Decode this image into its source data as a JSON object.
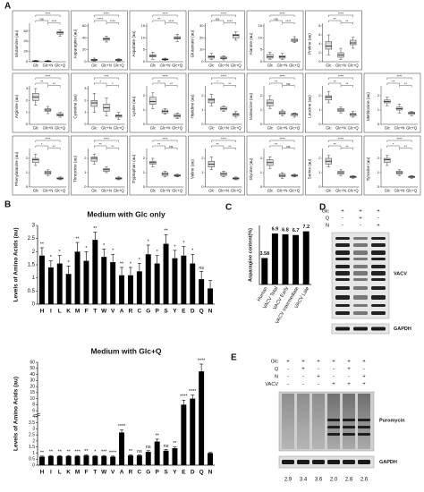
{
  "panel_labels": [
    "A",
    "B",
    "C",
    "D",
    "E"
  ],
  "chart_data": [
    {
      "type": "box",
      "y_label": "Glutamine (au)",
      "categories": [
        "Glc",
        "Glc+N",
        "Glc+Q"
      ],
      "ylim": [
        0,
        70
      ],
      "yticks": [
        0,
        20,
        40,
        60
      ],
      "boxes": [
        [
          0,
          0.5,
          1,
          2,
          3
        ],
        [
          0,
          0.5,
          1,
          1.5,
          3
        ],
        [
          50,
          54,
          57,
          59,
          62
        ]
      ],
      "annotations": [
        "ns",
        "****",
        "****"
      ]
    },
    {
      "type": "box",
      "y_label": "Asparagine (au)",
      "categories": [
        "Glc",
        "Glc+N",
        "Glc+Q"
      ],
      "ylim": [
        0,
        60
      ],
      "yticks": [
        0,
        20,
        40,
        60
      ],
      "boxes": [
        [
          1,
          2,
          3,
          4,
          6
        ],
        [
          33,
          36,
          38,
          40,
          43
        ],
        [
          1,
          2,
          3,
          4,
          5
        ]
      ],
      "annotations": [
        "****",
        "****",
        "****"
      ]
    },
    {
      "type": "box",
      "y_label": "Aspartate (au)",
      "categories": [
        "Glc",
        "Glc+N",
        "Glc+Q"
      ],
      "ylim": [
        0,
        15
      ],
      "yticks": [
        0,
        5,
        10,
        15
      ],
      "boxes": [
        [
          1,
          2,
          2.5,
          3,
          4
        ],
        [
          0.5,
          0.8,
          1,
          1.2,
          1.5
        ],
        [
          8.5,
          9.5,
          10,
          10.5,
          11.5
        ]
      ],
      "annotations": [
        "**",
        "****",
        "****"
      ]
    },
    {
      "type": "box",
      "y_label": "Glutamate (au)",
      "categories": [
        "Glc",
        "Glc+N",
        "Glc+Q"
      ],
      "ylim": [
        0,
        30
      ],
      "yticks": [
        0,
        10,
        20,
        30
      ],
      "boxes": [
        [
          2,
          3,
          4,
          5,
          7
        ],
        [
          1.5,
          2.5,
          3,
          4,
          5
        ],
        [
          18,
          20,
          22,
          23,
          25
        ]
      ],
      "annotations": [
        "ns",
        "****",
        "****"
      ]
    },
    {
      "type": "box",
      "y_label": "Alanine (au)",
      "categories": [
        "Glc",
        "Glc+N",
        "Glc+Q"
      ],
      "ylim": [
        0,
        15
      ],
      "yticks": [
        0,
        5,
        10,
        15
      ],
      "boxes": [
        [
          1,
          1.5,
          2,
          3,
          4
        ],
        [
          1,
          1.5,
          2,
          2.5,
          3.5
        ],
        [
          8,
          8.5,
          9,
          9.5,
          10.5
        ]
      ],
      "annotations": [
        "ns",
        "****",
        "****"
      ]
    },
    {
      "type": "box",
      "y_label": "Proline (au)",
      "categories": [
        "Glc",
        "Glc+N",
        "Glc+Q"
      ],
      "ylim": [
        0,
        8
      ],
      "yticks": [
        0,
        2,
        4,
        6,
        8
      ],
      "boxes": [
        [
          1.5,
          2.8,
          3.5,
          4.5,
          6
        ],
        [
          0.5,
          1,
          1.5,
          2,
          3
        ],
        [
          3,
          3.8,
          4.2,
          4.8,
          5.5
        ]
      ],
      "annotations": [
        "**",
        "**",
        "****"
      ]
    },
    {
      "type": "box",
      "y_label": "Arginine (au)",
      "categories": [
        "Glc",
        "Glc+N",
        "Glc+Q"
      ],
      "ylim": [
        0,
        3
      ],
      "yticks": [
        0,
        1,
        2,
        3
      ],
      "boxes": [
        [
          1.6,
          2,
          2.3,
          2.6,
          3
        ],
        [
          0.9,
          1.1,
          1.2,
          1.3,
          1.5
        ],
        [
          0.6,
          0.7,
          0.8,
          0.9,
          1
        ]
      ],
      "annotations": [
        "**",
        "**",
        "****"
      ]
    },
    {
      "type": "box",
      "y_label": "Cysteine (au)",
      "categories": [
        "Glc",
        "Glc+N",
        "Glc+Q"
      ],
      "ylim": [
        0,
        3
      ],
      "yticks": [
        0,
        1,
        2,
        3
      ],
      "boxes": [
        [
          1,
          1.5,
          1.8,
          2,
          2.6
        ],
        [
          0.7,
          1.1,
          1.4,
          1.7,
          2.2
        ],
        [
          0.4,
          0.6,
          0.7,
          0.8,
          1
        ]
      ],
      "annotations": [
        "*",
        "*",
        "***"
      ]
    },
    {
      "type": "box",
      "y_label": "Lysine (au)",
      "categories": [
        "Glc",
        "Glc+N",
        "Glc+Q"
      ],
      "ylim": [
        0,
        2.5
      ],
      "yticks": [
        0,
        1,
        2
      ],
      "boxes": [
        [
          1.1,
          1.4,
          1.6,
          1.9,
          2.2
        ],
        [
          0.7,
          0.8,
          0.9,
          1,
          1.1
        ],
        [
          0.4,
          0.5,
          0.6,
          0.7,
          0.8
        ]
      ],
      "annotations": [
        "**",
        "**",
        "****"
      ]
    },
    {
      "type": "box",
      "y_label": "Histidine (au)",
      "categories": [
        "Glc",
        "Glc+N",
        "Glc+Q"
      ],
      "ylim": [
        0,
        2.5
      ],
      "yticks": [
        0,
        1,
        2
      ],
      "boxes": [
        [
          1.3,
          1.5,
          1.7,
          1.8,
          2.1
        ],
        [
          0.9,
          1,
          1.1,
          1.2,
          1.3
        ],
        [
          0.5,
          0.6,
          0.7,
          0.75,
          0.9
        ]
      ],
      "annotations": [
        "*",
        "**",
        "****"
      ]
    },
    {
      "type": "box",
      "y_label": "Isoleucine (au)",
      "categories": [
        "Glc",
        "Glc+N",
        "Glc+Q"
      ],
      "ylim": [
        0,
        2.5
      ],
      "yticks": [
        0,
        1,
        2
      ],
      "boxes": [
        [
          1.1,
          1.3,
          1.5,
          1.7,
          2
        ],
        [
          0.6,
          0.7,
          0.8,
          0.9,
          1
        ],
        [
          0.5,
          0.6,
          0.7,
          0.75,
          0.8
        ]
      ],
      "annotations": [
        "**",
        "ns",
        "****"
      ]
    },
    {
      "type": "box",
      "y_label": "Leucine (au)",
      "categories": [
        "Glc",
        "Glc+N",
        "Glc+Q"
      ],
      "ylim": [
        0,
        2.5
      ],
      "yticks": [
        0,
        1,
        2
      ],
      "boxes": [
        [
          1.5,
          1.7,
          1.9,
          2,
          2.3
        ],
        [
          0.8,
          0.9,
          1,
          1.1,
          1.2
        ],
        [
          0.5,
          0.6,
          0.7,
          0.75,
          0.9
        ]
      ],
      "annotations": [
        "**",
        "**",
        "****"
      ]
    },
    {
      "type": "box",
      "y_label": "Methionine (au)",
      "categories": [
        "Glc",
        "Glc+N",
        "Glc+Q"
      ],
      "ylim": [
        0,
        2.5
      ],
      "yticks": [
        0,
        1,
        2
      ],
      "boxes": [
        [
          1.3,
          1.5,
          1.6,
          1.7,
          1.9
        ],
        [
          0.8,
          1,
          1.1,
          1.2,
          1.4
        ],
        [
          0.6,
          0.7,
          0.8,
          0.85,
          0.9
        ]
      ],
      "annotations": [
        "**",
        "**",
        "****"
      ]
    },
    {
      "type": "box",
      "y_label": "Phenylalanine (au)",
      "categories": [
        "Glc",
        "Glc+N",
        "Glc+Q"
      ],
      "ylim": [
        0,
        2.5
      ],
      "yticks": [
        0,
        1,
        2
      ],
      "boxes": [
        [
          1.5,
          1.7,
          1.9,
          2,
          2.3
        ],
        [
          0.8,
          0.9,
          1,
          1.1,
          1.2
        ],
        [
          0.5,
          0.55,
          0.6,
          0.65,
          0.7
        ]
      ],
      "annotations": [
        "*",
        "**",
        "****"
      ]
    },
    {
      "type": "box",
      "y_label": "Threonine (au)",
      "categories": [
        "Glc",
        "Glc+N",
        "Glc+Q"
      ],
      "ylim": [
        0,
        2.5
      ],
      "yticks": [
        0,
        1,
        2
      ],
      "boxes": [
        [
          1.6,
          1.8,
          2,
          2.1,
          2.3
        ],
        [
          1,
          1.1,
          1.2,
          1.3,
          1.4
        ],
        [
          0.5,
          0.55,
          0.6,
          0.65,
          0.7
        ]
      ],
      "annotations": [
        "**",
        "**",
        "****"
      ]
    },
    {
      "type": "box",
      "y_label": "Tryptophan (au)",
      "categories": [
        "Glc",
        "Glc+N",
        "Glc+Q"
      ],
      "ylim": [
        0,
        2.5
      ],
      "yticks": [
        0,
        1,
        2
      ],
      "boxes": [
        [
          1.4,
          1.6,
          1.7,
          1.8,
          2
        ],
        [
          0.7,
          0.8,
          0.9,
          1,
          1.1
        ],
        [
          0.7,
          0.75,
          0.8,
          0.85,
          0.9
        ]
      ],
      "annotations": [
        "**",
        "ns",
        "****"
      ]
    },
    {
      "type": "box",
      "y_label": "Valine (au)",
      "categories": [
        "Glc",
        "Glc+N",
        "Glc+Q"
      ],
      "ylim": [
        0,
        2.5
      ],
      "yticks": [
        0,
        1,
        2
      ],
      "boxes": [
        [
          1.2,
          1.4,
          1.6,
          1.8,
          2.1
        ],
        [
          0.7,
          0.8,
          0.9,
          1,
          1.1
        ],
        [
          0.5,
          0.55,
          0.6,
          0.65,
          0.7
        ]
      ],
      "annotations": [
        "**",
        "**",
        "****"
      ]
    },
    {
      "type": "box",
      "y_label": "Glycine (au)",
      "categories": [
        "Glc",
        "Glc+N",
        "Glc+Q"
      ],
      "ylim": [
        0,
        2.5
      ],
      "yticks": [
        0,
        1,
        2
      ],
      "boxes": [
        [
          1.3,
          1.5,
          1.7,
          1.9,
          2.1
        ],
        [
          0.6,
          0.7,
          0.8,
          0.9,
          1
        ],
        [
          0.7,
          0.75,
          0.8,
          0.85,
          0.9
        ]
      ],
      "annotations": [
        "**",
        "ns",
        "****"
      ]
    },
    {
      "type": "box",
      "y_label": "Serine (au)",
      "categories": [
        "Glc",
        "Glc+N",
        "Glc+Q"
      ],
      "ylim": [
        0,
        2.5
      ],
      "yticks": [
        0,
        1,
        2
      ],
      "boxes": [
        [
          1.4,
          1.6,
          1.8,
          2,
          2.2
        ],
        [
          0.8,
          0.9,
          1,
          1.1,
          1.2
        ],
        [
          0.6,
          0.65,
          0.7,
          0.75,
          0.8
        ]
      ],
      "annotations": [
        "**",
        "**",
        "****"
      ]
    },
    {
      "type": "box",
      "y_label": "Tyrosine (au)",
      "categories": [
        "Glc",
        "Glc+N",
        "Glc+Q"
      ],
      "ylim": [
        0,
        2.5
      ],
      "yticks": [
        0,
        1,
        2
      ],
      "boxes": [
        [
          1.5,
          1.7,
          1.9,
          2,
          2.2
        ],
        [
          0.8,
          0.9,
          1,
          1.1,
          1.2
        ],
        [
          0.6,
          0.65,
          0.7,
          0.75,
          0.8
        ]
      ],
      "annotations": [
        "*",
        "**",
        "****"
      ]
    },
    {
      "type": "bar",
      "title": "Medium with Glc only",
      "y_label": "Levels of Amino Acids (au)",
      "color": "#000000",
      "categories": [
        "H",
        "I",
        "L",
        "K",
        "M",
        "F",
        "T",
        "W",
        "V",
        "A",
        "R",
        "C",
        "G",
        "P",
        "S",
        "Y",
        "E",
        "D",
        "Q",
        "N"
      ],
      "values": [
        1.85,
        1.4,
        1.55,
        1.15,
        2.0,
        1.65,
        2.45,
        1.8,
        1.6,
        1.1,
        1.1,
        1.25,
        1.9,
        1.55,
        2.3,
        1.75,
        1.85,
        1.55,
        0.95,
        0.6
      ],
      "errors": [
        0.3,
        0.25,
        0.3,
        0.3,
        0.35,
        0.35,
        0.3,
        0.3,
        0.3,
        0.3,
        0.3,
        0.3,
        0.35,
        0.3,
        0.35,
        0.3,
        0.35,
        0.35,
        0.3,
        0.3
      ],
      "annotations": [
        "**",
        "*",
        "*",
        "*",
        "**",
        "*",
        "**",
        "*",
        "*",
        "**",
        "*",
        "*",
        "*",
        "*",
        "**",
        "*",
        "*",
        "*",
        "ns",
        null
      ],
      "ylim": [
        0,
        3
      ],
      "yticks": [
        0,
        0.5,
        1,
        1.5,
        2,
        2.5,
        3
      ]
    },
    {
      "type": "bar",
      "title": "Medium with Glc+Q",
      "y_label": "Levels of Amino Acids (au)",
      "color": "#000000",
      "axis_break": true,
      "categories": [
        "H",
        "I",
        "L",
        "K",
        "M",
        "F",
        "T",
        "W",
        "V",
        "A",
        "R",
        "C",
        "G",
        "P",
        "S",
        "Y",
        "E",
        "D",
        "Q",
        "N"
      ],
      "values": [
        0.7,
        0.75,
        0.75,
        0.75,
        0.75,
        0.8,
        0.75,
        0.75,
        0.7,
        2.7,
        0.8,
        0.8,
        1.1,
        1.95,
        1.2,
        1.4,
        8,
        10,
        45,
        1.0
      ],
      "errors": [
        0.05,
        0.05,
        0.05,
        0.05,
        0.05,
        0.05,
        0.05,
        0.05,
        0.05,
        0.2,
        0.05,
        0.05,
        0.1,
        0.2,
        0.1,
        0.1,
        1.5,
        3,
        12,
        0.05
      ],
      "annotations": [
        "**",
        "**",
        "**",
        "**",
        "***",
        "**",
        "*",
        "***",
        "****",
        "****",
        "**",
        "ns",
        "ns",
        "**",
        "ns",
        "**",
        "****",
        "****",
        "****",
        null
      ],
      "ylim": [
        0,
        60
      ],
      "yticks": [
        0,
        0.5,
        1,
        1.5,
        2,
        2.5,
        3,
        3.5,
        4,
        6,
        8,
        10,
        15,
        20,
        30,
        40,
        50,
        60
      ]
    },
    {
      "type": "bar",
      "y_label": "Asparagine content(%)",
      "color": "#000000",
      "categories": [
        "Human",
        "VACV Total",
        "VACV Early",
        "VACV Intermediate",
        "VACV Late"
      ],
      "values": [
        3.58,
        6.9,
        6.8,
        6.7,
        7.2
      ],
      "ylim": [
        0,
        8
      ]
    }
  ],
  "blots": [
    {
      "conditions": [
        {
          "name": "Glc",
          "signs": [
            "+",
            "+",
            "+"
          ]
        },
        {
          "name": "Q",
          "signs": [
            "-",
            "+",
            "-"
          ]
        },
        {
          "name": "N",
          "signs": [
            "-",
            "-",
            "+"
          ]
        }
      ],
      "bands": [
        "VACV",
        "GAPDH"
      ]
    },
    {
      "conditions": [
        {
          "name": "Glc",
          "signs": [
            "+",
            "+",
            "+",
            "+",
            "+",
            "+"
          ]
        },
        {
          "name": "Q",
          "signs": [
            "-",
            "+",
            "-",
            "-",
            "+",
            "-"
          ]
        },
        {
          "name": "N",
          "signs": [
            "-",
            "-",
            "+",
            "-",
            "-",
            "+"
          ]
        },
        {
          "name": "VACV",
          "signs": [
            "-",
            "-",
            "-",
            "+",
            "+",
            "+"
          ]
        }
      ],
      "bands": [
        "Puromycin",
        "GAPDH"
      ],
      "quantification": [
        "2.9",
        "3.4",
        "3.6",
        "2.0",
        "2.8",
        "2.6"
      ]
    }
  ]
}
